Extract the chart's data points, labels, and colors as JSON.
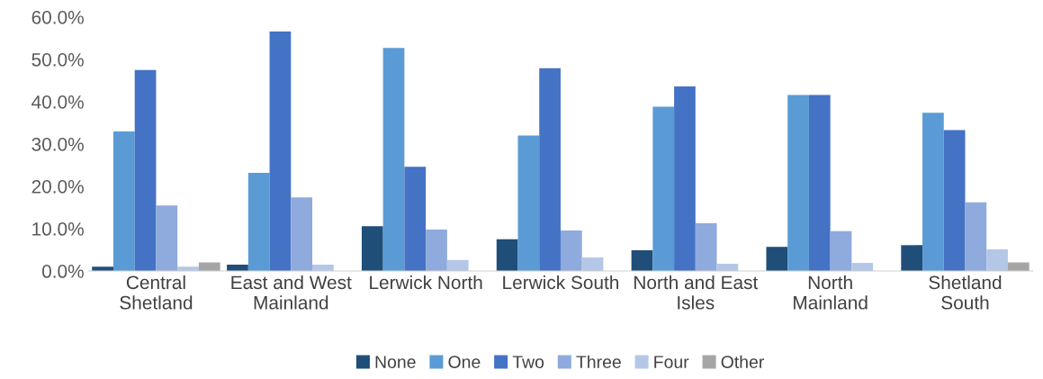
{
  "chart_data": {
    "type": "bar",
    "categories": [
      "Central\nShetland",
      "East and West\nMainland",
      "Lerwick North",
      "Lerwick South",
      "North and East\nIsles",
      "North\nMainland",
      "Shetland\nSouth"
    ],
    "series": [
      {
        "name": "None",
        "color": "#1f4e79",
        "values": [
          1.0,
          1.5,
          10.6,
          7.5,
          4.9,
          5.7,
          6.1
        ]
      },
      {
        "name": "One",
        "color": "#5b9bd5",
        "values": [
          33.0,
          23.2,
          52.7,
          32.0,
          38.8,
          41.6,
          37.4
        ]
      },
      {
        "name": "Two",
        "color": "#4472c4",
        "values": [
          47.5,
          56.6,
          24.6,
          47.9,
          43.6,
          41.6,
          33.3
        ]
      },
      {
        "name": "Three",
        "color": "#8faadc",
        "values": [
          15.5,
          17.4,
          9.8,
          9.6,
          11.3,
          9.4,
          16.2
        ]
      },
      {
        "name": "Four",
        "color": "#b4c7e7",
        "values": [
          1.0,
          1.5,
          2.6,
          3.2,
          1.7,
          1.9,
          5.1
        ]
      },
      {
        "name": "Other",
        "color": "#a5a5a5",
        "values": [
          2.0,
          null,
          null,
          null,
          null,
          null,
          2.0
        ]
      }
    ],
    "ylim": [
      0,
      60
    ],
    "yticks": [
      {
        "value": 0,
        "label": "0.0%"
      },
      {
        "value": 10,
        "label": "10.0%"
      },
      {
        "value": 20,
        "label": "20.0%"
      },
      {
        "value": 30,
        "label": "30.0%"
      },
      {
        "value": 40,
        "label": "40.0%"
      },
      {
        "value": 50,
        "label": "50.0%"
      },
      {
        "value": 60,
        "label": "60.0%"
      }
    ],
    "grid": false,
    "legend": "bottom"
  }
}
